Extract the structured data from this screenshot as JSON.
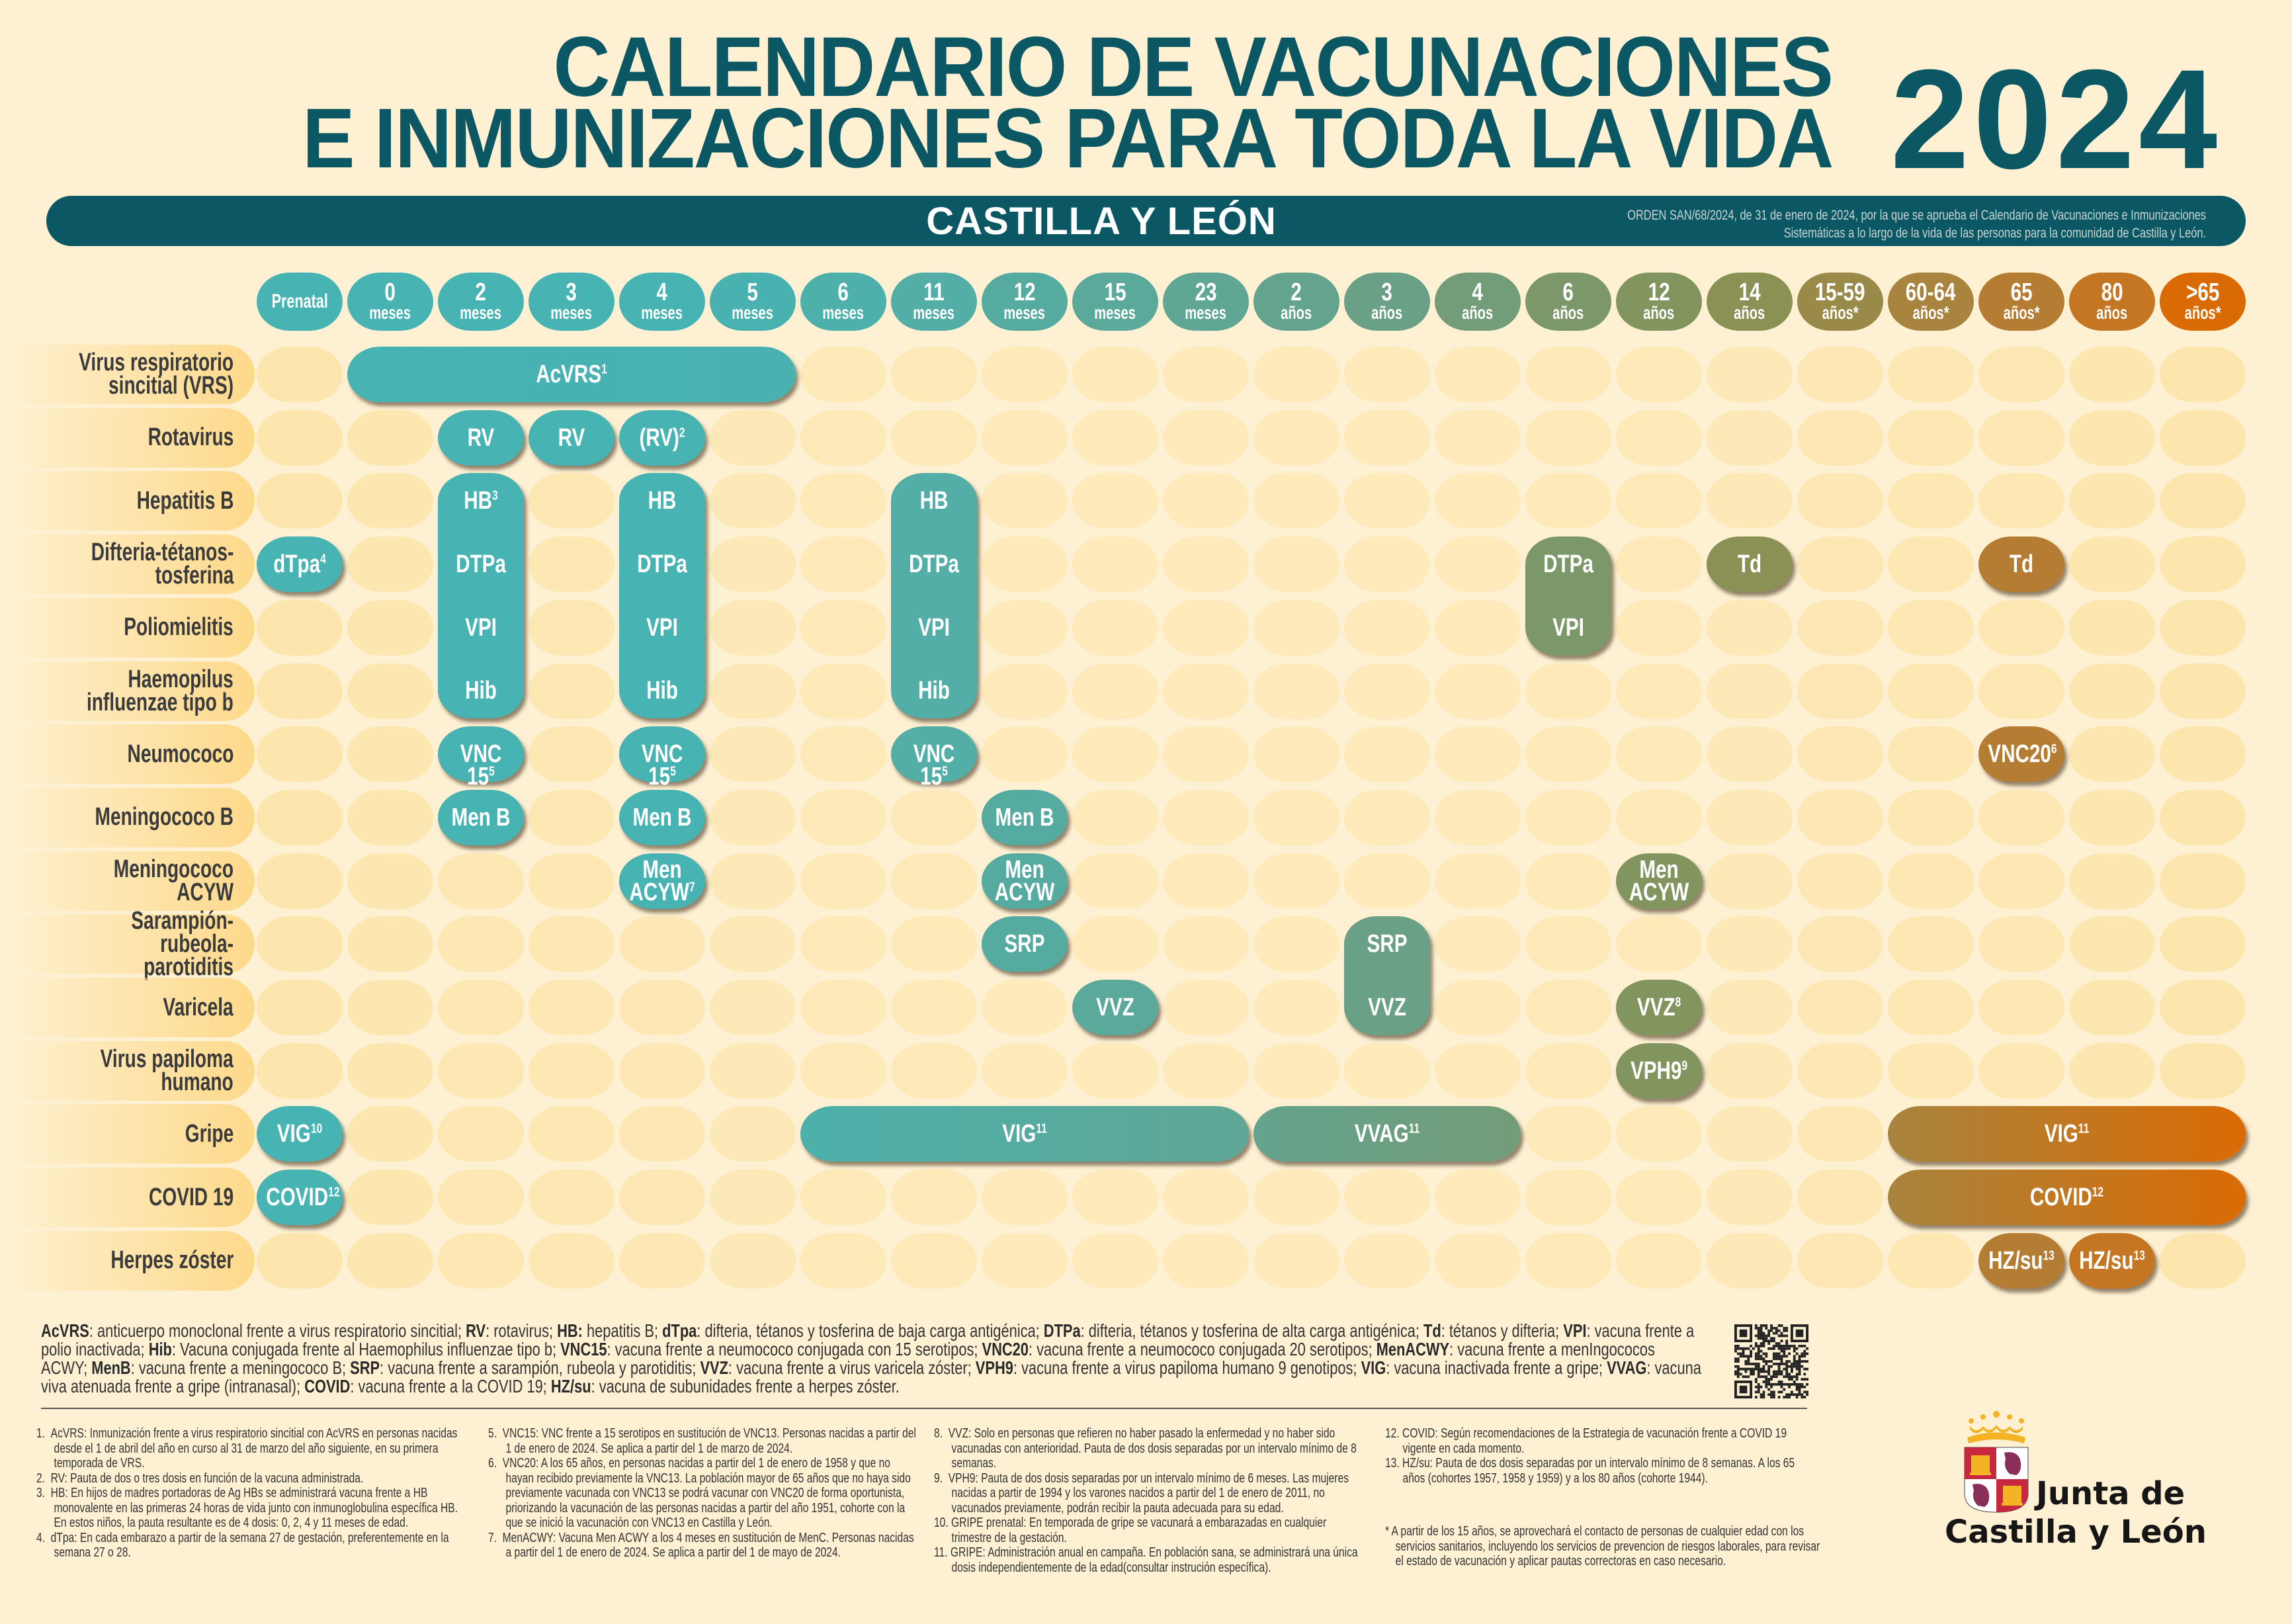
{
  "header": {
    "title_line1": "CALENDARIO DE VACUNACIONES",
    "title_line2": "E INMUNIZACIONES PARA TODA LA VIDA",
    "year": "2024",
    "region": "CASTILLA Y LEÓN",
    "orden_line1": "ORDEN SAN/68/2024, de 31 de enero de 2024, por la que se aprueba el Calendario de Vacunaciones e Inmunizaciones",
    "orden_line2": "Sistemáticas a lo largo de la vida de las personas para la comunidad de Castilla y León."
  },
  "colors": {
    "title": "#0b5864",
    "background": "#fef1d3",
    "empty_cell": "#fde6ae",
    "row_label": "#fdd98a",
    "column": [
      "#48b3b3",
      "#48b3b3",
      "#48b3b3",
      "#48b3b3",
      "#48b3b3",
      "#49b2b1",
      "#4db0ab",
      "#52aea6",
      "#56aba0",
      "#5aa99b",
      "#5fa695",
      "#64a38d",
      "#6aa086",
      "#739c78",
      "#7c986a",
      "#82955f",
      "#8b9155",
      "#9a8a4a",
      "#a8843f",
      "#b57d33",
      "#c57622",
      "#da6b04"
    ]
  },
  "columns": [
    {
      "id": "prenatal",
      "num": "Prenatal",
      "unit": ""
    },
    {
      "id": "m0",
      "num": "0",
      "unit": "meses"
    },
    {
      "id": "m2",
      "num": "2",
      "unit": "meses"
    },
    {
      "id": "m3",
      "num": "3",
      "unit": "meses"
    },
    {
      "id": "m4",
      "num": "4",
      "unit": "meses"
    },
    {
      "id": "m5",
      "num": "5",
      "unit": "meses"
    },
    {
      "id": "m6",
      "num": "6",
      "unit": "meses"
    },
    {
      "id": "m11",
      "num": "11",
      "unit": "meses"
    },
    {
      "id": "m12",
      "num": "12",
      "unit": "meses"
    },
    {
      "id": "m15",
      "num": "15",
      "unit": "meses"
    },
    {
      "id": "m23",
      "num": "23",
      "unit": "meses"
    },
    {
      "id": "a2",
      "num": "2",
      "unit": "años"
    },
    {
      "id": "a3",
      "num": "3",
      "unit": "años"
    },
    {
      "id": "a4",
      "num": "4",
      "unit": "años"
    },
    {
      "id": "a6",
      "num": "6",
      "unit": "años"
    },
    {
      "id": "a12",
      "num": "12",
      "unit": "años"
    },
    {
      "id": "a14",
      "num": "14",
      "unit": "años"
    },
    {
      "id": "a15_59",
      "num": "15-59",
      "unit": "años*"
    },
    {
      "id": "a60_64",
      "num": "60-64",
      "unit": "años*"
    },
    {
      "id": "a65",
      "num": "65",
      "unit": "años*"
    },
    {
      "id": "a80",
      "num": "80",
      "unit": "años"
    },
    {
      "id": "a65plus",
      "num": ">65",
      "unit": "años*"
    }
  ],
  "rows": [
    {
      "id": "vrs",
      "label": "Virus respiratorio\nsincitial (VRS)"
    },
    {
      "id": "rota",
      "label": "Rotavirus"
    },
    {
      "id": "hepb",
      "label": "Hepatitis B"
    },
    {
      "id": "dtp",
      "label": "Difteria-tétanos-\ntosferina"
    },
    {
      "id": "polio",
      "label": "Poliomielitis"
    },
    {
      "id": "hib",
      "label": "Haemopilus\ninfluenzae tipo b"
    },
    {
      "id": "neumo",
      "label": "Neumococo"
    },
    {
      "id": "menb",
      "label": "Meningococo B"
    },
    {
      "id": "menacyw",
      "label": "Meningococo ACYW"
    },
    {
      "id": "srp",
      "label": "Sarampión-rubeola-\nparotiditis"
    },
    {
      "id": "varicela",
      "label": "Varicela"
    },
    {
      "id": "vph",
      "label": "Virus papiloma\nhumano"
    },
    {
      "id": "gripe",
      "label": "Gripe"
    },
    {
      "id": "covid",
      "label": "COVID 19"
    },
    {
      "id": "herpes",
      "label": "Herpes zóster"
    }
  ],
  "vaccines": [
    {
      "rows": [
        "vrs",
        "vrs"
      ],
      "cols": [
        "m0",
        "m5"
      ],
      "labels": [
        {
          "text": "AcVRS",
          "sup": "1"
        }
      ]
    },
    {
      "rows": [
        "rota",
        "rota"
      ],
      "cols": [
        "m2",
        "m2"
      ],
      "labels": [
        {
          "text": "RV",
          "sup": ""
        }
      ]
    },
    {
      "rows": [
        "rota",
        "rota"
      ],
      "cols": [
        "m3",
        "m3"
      ],
      "labels": [
        {
          "text": "RV",
          "sup": ""
        }
      ]
    },
    {
      "rows": [
        "rota",
        "rota"
      ],
      "cols": [
        "m4",
        "m4"
      ],
      "labels": [
        {
          "text": "(RV)",
          "sup": "2"
        }
      ]
    },
    {
      "rows": [
        "hepb",
        "hib"
      ],
      "cols": [
        "m2",
        "m2"
      ],
      "labels": [
        {
          "text": "HB",
          "sup": "3"
        },
        {
          "text": "DTPa",
          "sup": ""
        },
        {
          "text": "VPI",
          "sup": ""
        },
        {
          "text": "Hib",
          "sup": ""
        }
      ]
    },
    {
      "rows": [
        "hepb",
        "hib"
      ],
      "cols": [
        "m4",
        "m4"
      ],
      "labels": [
        {
          "text": "HB",
          "sup": ""
        },
        {
          "text": "DTPa",
          "sup": ""
        },
        {
          "text": "VPI",
          "sup": ""
        },
        {
          "text": "Hib",
          "sup": ""
        }
      ]
    },
    {
      "rows": [
        "hepb",
        "hib"
      ],
      "cols": [
        "m11",
        "m11"
      ],
      "labels": [
        {
          "text": "HB",
          "sup": ""
        },
        {
          "text": "DTPa",
          "sup": ""
        },
        {
          "text": "VPI",
          "sup": ""
        },
        {
          "text": "Hib",
          "sup": ""
        }
      ]
    },
    {
      "rows": [
        "dtp",
        "dtp"
      ],
      "cols": [
        "prenatal",
        "prenatal"
      ],
      "labels": [
        {
          "text": "dTpa",
          "sup": "4"
        }
      ]
    },
    {
      "rows": [
        "dtp",
        "polio"
      ],
      "cols": [
        "a6",
        "a6"
      ],
      "labels": [
        {
          "text": "DTPa",
          "sup": ""
        },
        {
          "text": "VPI",
          "sup": ""
        }
      ]
    },
    {
      "rows": [
        "dtp",
        "dtp"
      ],
      "cols": [
        "a14",
        "a14"
      ],
      "labels": [
        {
          "text": "Td",
          "sup": ""
        }
      ]
    },
    {
      "rows": [
        "dtp",
        "dtp"
      ],
      "cols": [
        "a65",
        "a65"
      ],
      "labels": [
        {
          "text": "Td",
          "sup": ""
        }
      ]
    },
    {
      "rows": [
        "neumo",
        "neumo"
      ],
      "cols": [
        "m2",
        "m2"
      ],
      "labels": [
        {
          "text": "VNC 15",
          "sup": "5"
        }
      ]
    },
    {
      "rows": [
        "neumo",
        "neumo"
      ],
      "cols": [
        "m4",
        "m4"
      ],
      "labels": [
        {
          "text": "VNC 15",
          "sup": "5"
        }
      ]
    },
    {
      "rows": [
        "neumo",
        "neumo"
      ],
      "cols": [
        "m11",
        "m11"
      ],
      "labels": [
        {
          "text": "VNC 15",
          "sup": "5"
        }
      ]
    },
    {
      "rows": [
        "neumo",
        "neumo"
      ],
      "cols": [
        "a65",
        "a65"
      ],
      "labels": [
        {
          "text": "VNC20",
          "sup": "6"
        }
      ]
    },
    {
      "rows": [
        "menb",
        "menb"
      ],
      "cols": [
        "m2",
        "m2"
      ],
      "labels": [
        {
          "text": "Men B",
          "sup": ""
        }
      ]
    },
    {
      "rows": [
        "menb",
        "menb"
      ],
      "cols": [
        "m4",
        "m4"
      ],
      "labels": [
        {
          "text": "Men B",
          "sup": ""
        }
      ]
    },
    {
      "rows": [
        "menb",
        "menb"
      ],
      "cols": [
        "m12",
        "m12"
      ],
      "labels": [
        {
          "text": "Men B",
          "sup": ""
        }
      ]
    },
    {
      "rows": [
        "menacyw",
        "menacyw"
      ],
      "cols": [
        "m4",
        "m4"
      ],
      "labels": [
        {
          "text": "Men\nACYW",
          "sup": "7"
        }
      ]
    },
    {
      "rows": [
        "menacyw",
        "menacyw"
      ],
      "cols": [
        "m12",
        "m12"
      ],
      "labels": [
        {
          "text": "Men\nACYW",
          "sup": ""
        }
      ]
    },
    {
      "rows": [
        "menacyw",
        "menacyw"
      ],
      "cols": [
        "a12",
        "a12"
      ],
      "labels": [
        {
          "text": "Men\nACYW",
          "sup": ""
        }
      ]
    },
    {
      "rows": [
        "srp",
        "srp"
      ],
      "cols": [
        "m12",
        "m12"
      ],
      "labels": [
        {
          "text": "SRP",
          "sup": ""
        }
      ]
    },
    {
      "rows": [
        "srp",
        "varicela"
      ],
      "cols": [
        "a3",
        "a3"
      ],
      "labels": [
        {
          "text": "SRP",
          "sup": ""
        },
        {
          "text": "VVZ",
          "sup": ""
        }
      ]
    },
    {
      "rows": [
        "varicela",
        "varicela"
      ],
      "cols": [
        "m15",
        "m15"
      ],
      "labels": [
        {
          "text": "VVZ",
          "sup": ""
        }
      ]
    },
    {
      "rows": [
        "varicela",
        "varicela"
      ],
      "cols": [
        "a12",
        "a12"
      ],
      "labels": [
        {
          "text": "VVZ",
          "sup": "8"
        }
      ]
    },
    {
      "rows": [
        "vph",
        "vph"
      ],
      "cols": [
        "a12",
        "a12"
      ],
      "labels": [
        {
          "text": "VPH9",
          "sup": "9"
        }
      ]
    },
    {
      "rows": [
        "gripe",
        "gripe"
      ],
      "cols": [
        "prenatal",
        "prenatal"
      ],
      "labels": [
        {
          "text": "VIG",
          "sup": "10"
        }
      ]
    },
    {
      "rows": [
        "gripe",
        "gripe"
      ],
      "cols": [
        "m6",
        "m23"
      ],
      "labels": [
        {
          "text": "VIG",
          "sup": "11"
        }
      ]
    },
    {
      "rows": [
        "gripe",
        "gripe"
      ],
      "cols": [
        "a2",
        "a4"
      ],
      "labels": [
        {
          "text": "VVAG",
          "sup": "11"
        }
      ]
    },
    {
      "rows": [
        "gripe",
        "gripe"
      ],
      "cols": [
        "a60_64",
        "a65plus"
      ],
      "labels": [
        {
          "text": "VIG",
          "sup": "11"
        }
      ]
    },
    {
      "rows": [
        "covid",
        "covid"
      ],
      "cols": [
        "prenatal",
        "prenatal"
      ],
      "labels": [
        {
          "text": "COVID",
          "sup": "12"
        }
      ]
    },
    {
      "rows": [
        "covid",
        "covid"
      ],
      "cols": [
        "a60_64",
        "a65plus"
      ],
      "labels": [
        {
          "text": "COVID",
          "sup": "12"
        }
      ]
    },
    {
      "rows": [
        "herpes",
        "herpes"
      ],
      "cols": [
        "a65",
        "a65"
      ],
      "labels": [
        {
          "text": "HZ/su",
          "sup": "13"
        }
      ]
    },
    {
      "rows": [
        "herpes",
        "herpes"
      ],
      "cols": [
        "a80",
        "a80"
      ],
      "labels": [
        {
          "text": "HZ/su",
          "sup": "13"
        }
      ]
    }
  ],
  "legend": [
    {
      "term": "AcVRS",
      "desc": ": anticuerpo monoclonal frente a virus respiratorio sincitial; "
    },
    {
      "term": "RV",
      "desc": ": rotavirus; "
    },
    {
      "term": "HB:",
      "desc": " hepatitis B; "
    },
    {
      "term": "dTpa",
      "desc": ": difteria, tétanos y tosferina de baja carga antigénica; "
    },
    {
      "term": "DTPa",
      "desc": ": difteria, tétanos y tosferina de alta carga antigénica; "
    },
    {
      "term": "Td",
      "desc": ": tétanos y difteria; "
    },
    {
      "term": "VPI",
      "desc": ": vacuna frente a polio inactivada; "
    },
    {
      "term": "Hib",
      "desc": ": Vacuna conjugada frente al Haemophilus influenzae tipo b; "
    },
    {
      "term": "VNC15",
      "desc": ": vacuna frente a neumococo conjugada con 15 serotipos; "
    },
    {
      "term": "VNC20",
      "desc": ": vacuna frente a neumococo conjugada 20 serotipos; "
    },
    {
      "term": "MenACWY",
      "desc": ": vacuna frente a menIngococos ACWY; "
    },
    {
      "term": "MenB",
      "desc": ": vacuna frente a meningococo B; "
    },
    {
      "term": "SRP",
      "desc": ": vacuna frente a sarampión, rubeola y parotiditis; "
    },
    {
      "term": "VVZ",
      "desc": ": vacuna frente a virus varicela zóster; "
    },
    {
      "term": "VPH9",
      "desc": ": vacuna frente a virus papiloma humano 9 genotipos; "
    },
    {
      "term": "VIG",
      "desc": ": vacuna inactivada frente a gripe; "
    },
    {
      "term": "VVAG",
      "desc": ": vacuna viva atenuada frente a gripe (intranasal); "
    },
    {
      "term": "COVID",
      "desc": ": vacuna frente a la COVID 19; "
    },
    {
      "term": "HZ/su",
      "desc": ": vacuna de subunidades frente a herpes zóster."
    }
  ],
  "footnotes": {
    "columns": [
      [
        "1.  AcVRS: Inmunización frente a virus respiratorio sincitial con AcVRS en personas nacidas desde el 1 de abril del año en curso al 31 de marzo del año siguiente, en su primera temporada de VRS.",
        "2.  RV: Pauta de dos o tres dosis en función de la vacuna administrada.",
        "3.  HB: En hijos de madres portadoras de Ag HBs se administrará vacuna frente a HB monovalente en las primeras 24 horas de vida junto con inmunoglobulina específica HB. En estos niños, la pauta resultante es de 4 dosis: 0, 2, 4 y 11 meses de edad.",
        "4.  dTpa: En cada embarazo a partir de la semana 27 de gestación, preferentemente en la semana 27 o 28."
      ],
      [
        "5.  VNC15: VNC frente a 15 serotipos en sustitución de VNC13.  Personas nacidas a partir del 1 de enero de 2024. Se aplica a partir del 1 de marzo de 2024.",
        "6.  VNC20: A los 65 años, en personas nacidas a partir del 1 de enero de 1958 y que no hayan recibido previamente la VNC13. La población mayor de 65 años que no haya sido previamente vacunada con VNC13 se podrá vacunar con VNC20 de forma oportunista, priorizando la vacunación de las personas nacidas a partir del año 1951, cohorte con la que se inició la vacunación con VNC13 en Castilla y León.",
        "7.  MenACWY: Vacuna Men ACWY a los 4 meses en sustitución de MenC. Personas nacidas a partir del 1 de enero de 2024. Se aplica a partir del 1 de mayo de 2024."
      ],
      [
        "8.  VVZ: Solo en personas que refieren no haber pasado la enfermedad y no haber sido vacunadas con anterioridad. Pauta de dos dosis separadas por un intervalo mínimo de 8 semanas.",
        "9.  VPH9: Pauta de dos dosis separadas por un intervalo mínimo de 6 meses. Las mujeres nacidas a partir de 1994 y los varones nacidos a partir del 1 de enero de 2011, no vacunados previamente, podrán recibir la pauta adecuada para su edad.",
        "10. GRIPE prenatal: En temporada de gripe se vacunará a embarazadas en cualquier trimestre de la gestación.",
        "11. GRIPE: Administración anual en campaña. En población sana, se administrará una única dosis independientemente de la edad(consultar instrución específica)."
      ],
      [
        "12. COVID: Según recomendaciones de la Estrategia de vacunación frente a COVID 19 vigente en cada momento.",
        "13. HZ/su: Pauta de dos dosis separadas por un intervalo mínimo de 8 semanas. A los 65 años (cohortes 1957, 1958 y 1959) y a los 80 años (cohorte 1944)."
      ]
    ],
    "note": "* A partir de los 15 años, se aprovechará el contacto de personas de cualquier edad con los servicios sanitarios, incluyendo los servicios de prevencion de riesgos laborales, para revisar el estado de vacunación y aplicar pautas correctoras en caso necesario."
  },
  "logo": {
    "line1": "Junta de",
    "line2": "Castilla y León",
    "icon": "coat-of-arms-icon"
  },
  "qr": {
    "icon": "qr-code-icon"
  }
}
